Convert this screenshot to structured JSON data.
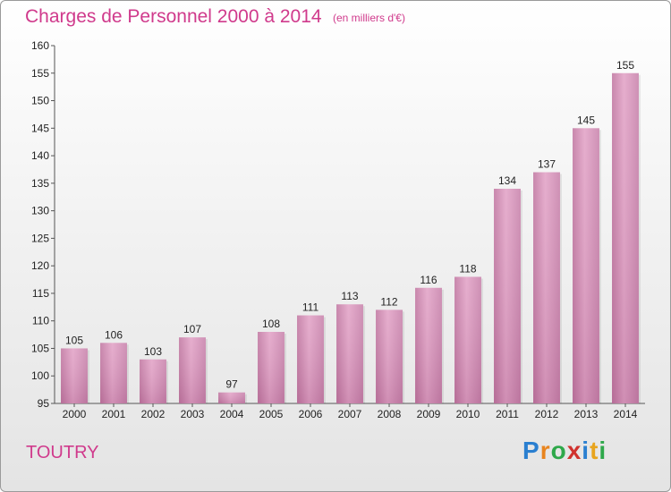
{
  "header": {
    "title": "Charges de Personnel 2000 à 2014",
    "subtitle": "(en milliers d'€)"
  },
  "footer": {
    "city": "TOUTRY",
    "logo": "Proxiti"
  },
  "colors": {
    "accent": "#d03a8c",
    "bar": "#d48ab4"
  },
  "chart_data": {
    "type": "bar",
    "categories": [
      "2000",
      "2001",
      "2002",
      "2003",
      "2004",
      "2005",
      "2006",
      "2007",
      "2008",
      "2009",
      "2010",
      "2011",
      "2012",
      "2013",
      "2014"
    ],
    "values": [
      105,
      106,
      103,
      107,
      97,
      108,
      111,
      113,
      112,
      116,
      118,
      134,
      137,
      145,
      155
    ],
    "ylim": [
      95,
      160
    ],
    "yticks": [
      95,
      100,
      105,
      110,
      115,
      120,
      125,
      130,
      135,
      140,
      145,
      150,
      155,
      160
    ],
    "grid": false,
    "legend": "none"
  }
}
